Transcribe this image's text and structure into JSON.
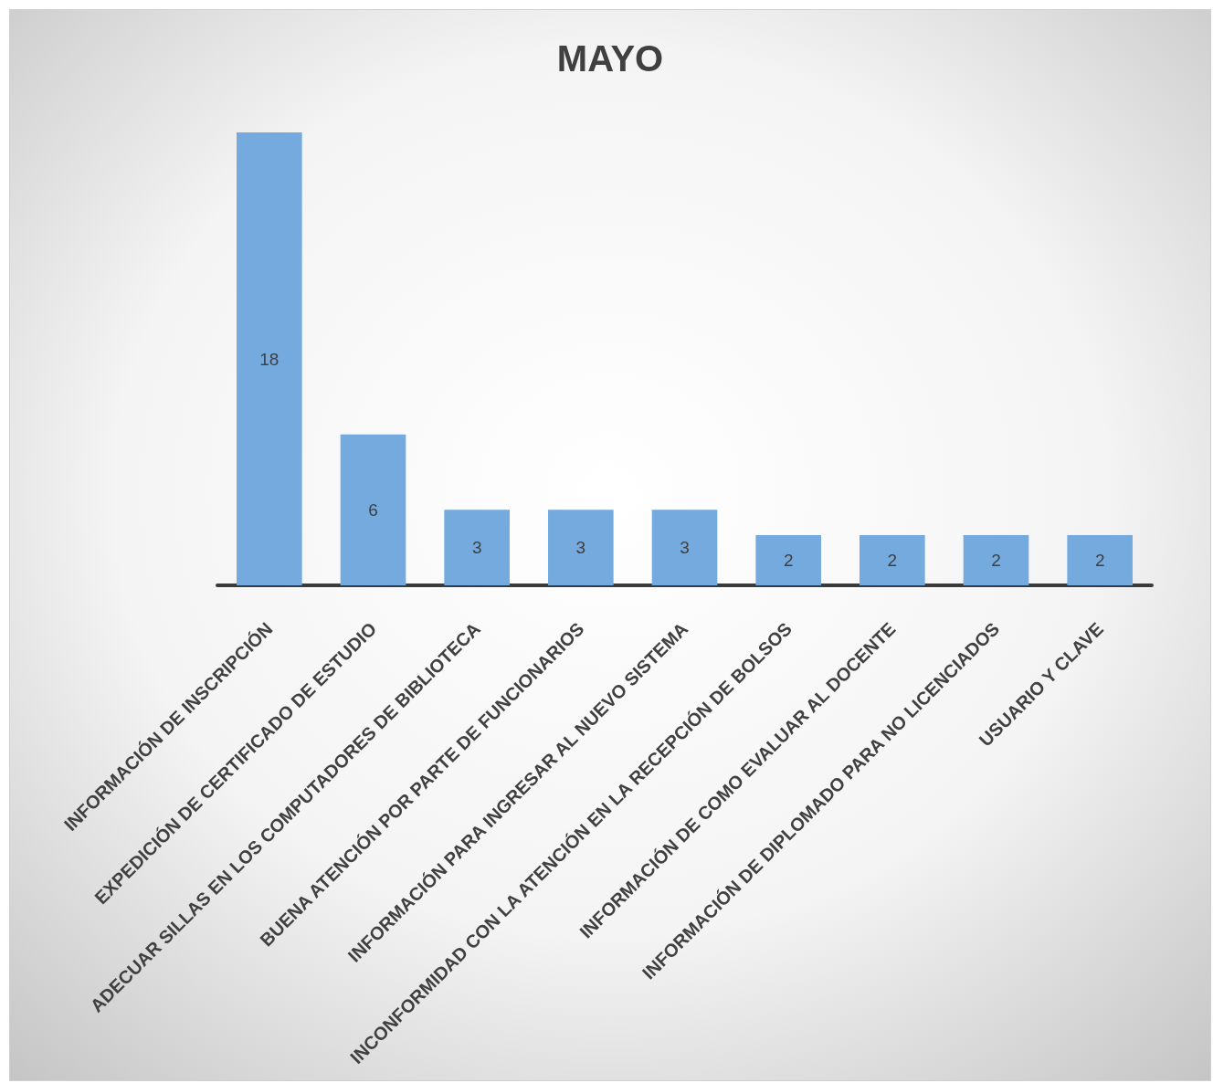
{
  "chart_data": {
    "type": "bar",
    "title": "MAYO",
    "categories": [
      "INFORMACIÓN DE INSCRIPCIÓN",
      "EXPEDICIÓN DE CERTIFICADO DE ESTUDIO",
      "ADECUAR SILLAS EN LOS COMPUTADORES DE BIBLIOTECA",
      "BUENA ATENCIÓN POR PARTE DE FUNCIONARIOS",
      "INFORMACIÓN PARA INGRESAR AL NUEVO SISTEMA",
      "INCONFORMIDAD CON LA ATENCIÓN EN LA RECEPCIÓN DE BOLSOS",
      "INFORMACIÓN DE COMO EVALUAR AL DOCENTE",
      "INFORMACIÓN DE DIPLOMADO PARA NO LICENCIADOS",
      "USUARIO Y CLAVE"
    ],
    "values": [
      18,
      6,
      3,
      3,
      3,
      2,
      2,
      2,
      2
    ],
    "data_labels": true,
    "tick_labels": "x",
    "color": "#74aade"
  }
}
